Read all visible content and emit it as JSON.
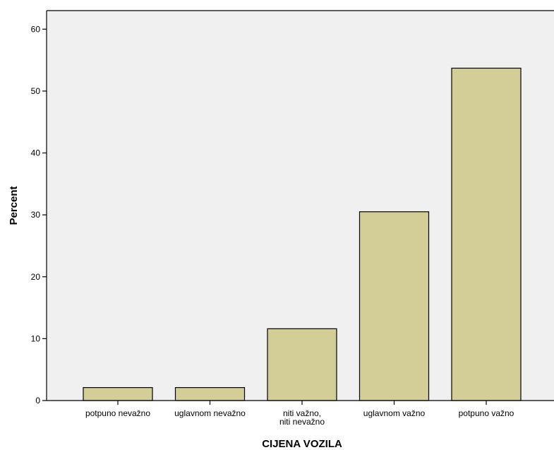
{
  "chart_data": {
    "type": "bar",
    "categories": [
      "potpuno nevažno",
      "uglavnom nevažno",
      "niti važno, niti nevažno",
      "uglavnom važno",
      "potpuno važno"
    ],
    "values": [
      2.1,
      2.1,
      11.6,
      30.5,
      53.7
    ],
    "xlabel": "CIJENA VOZILA",
    "ylabel": "Percent",
    "ylim": [
      0,
      63
    ],
    "yticks": [
      0,
      10,
      20,
      30,
      40,
      50,
      60
    ],
    "grid": false,
    "legend": "none",
    "colors": {
      "plot_background": "#f0f0f0",
      "bar_fill": "#d3ce97",
      "bar_stroke": "#000000",
      "axis": "#000000"
    }
  }
}
